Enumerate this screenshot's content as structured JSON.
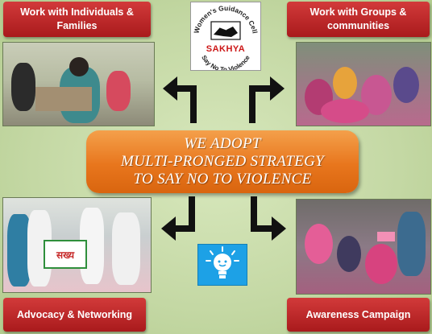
{
  "logo": {
    "top_text": "Women's Guidance Cell",
    "name": "SAKHYA",
    "bottom_text": "Say No To Violence"
  },
  "labels": {
    "top_left": [
      "Work with Individuals &",
      "Families"
    ],
    "top_right": [
      "Work with Groups &",
      "communities"
    ],
    "bottom_left": "Advocacy & Networking",
    "bottom_right": "Awareness Campaign"
  },
  "center": {
    "lines": [
      "WE ADOPT",
      "MULTI-PRONGED STRATEGY",
      "TO SAY NO TO VIOLENCE"
    ]
  },
  "photos": {
    "bottom_left_banner": "सख्य"
  },
  "colors": {
    "background": "#c5d9a8",
    "label_red": "#c0282a",
    "center_orange": "#e8761d",
    "bulb_blue": "#1da1e6",
    "logo_red": "#cc1616"
  },
  "icons": [
    "arrow-up-left-icon",
    "arrow-up-right-icon",
    "arrow-down-left-icon",
    "arrow-down-right-icon",
    "light-bulb-icon",
    "handshake-icon"
  ]
}
